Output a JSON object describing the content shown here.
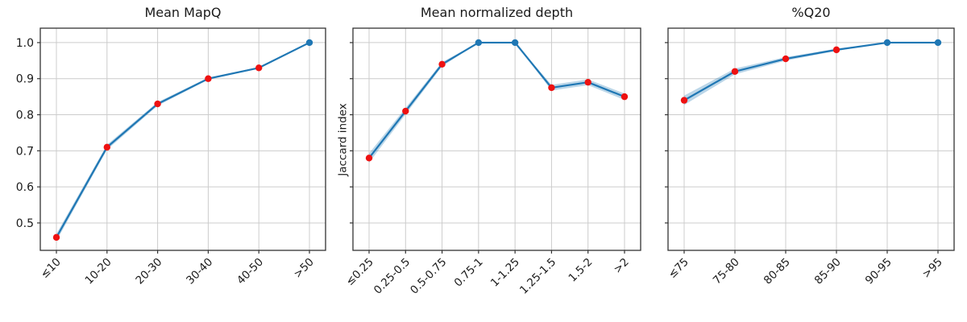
{
  "figure": {
    "background": "#ffffff",
    "grid": true,
    "legend": null
  },
  "colors": {
    "line": "#1f77b4",
    "band": "#1f77b4",
    "band_opacity": 0.3,
    "marker_red": "#ee1111",
    "marker_blue": "#1f77b4",
    "grid": "#cccccc",
    "spine": "#333333",
    "text": "#1a1a1a"
  },
  "y_axis": {
    "ticks": [
      0.5,
      0.6,
      0.7,
      0.8,
      0.9,
      1.0
    ],
    "tick_labels": [
      "0.5",
      "0.6",
      "0.7",
      "0.8",
      "0.9",
      "1.0"
    ],
    "ylim": [
      0.424,
      1.04
    ]
  },
  "chart_data": [
    {
      "type": "line",
      "title": "Mean MapQ",
      "xlabel": "",
      "ylabel": "",
      "categories": [
        "≤10",
        "10-20",
        "20-30",
        "30-40",
        "40-50",
        ">50"
      ],
      "values": [
        0.46,
        0.71,
        0.83,
        0.9,
        0.93,
        1.0
      ],
      "band_halfwidth": [
        0.01,
        0.007,
        0.005,
        0.003,
        0.002,
        0.0
      ],
      "point_colors": [
        "red",
        "red",
        "red",
        "red",
        "red",
        "blue"
      ],
      "show_y_tick_labels": true,
      "grid": true,
      "ylim": [
        0.424,
        1.04
      ]
    },
    {
      "type": "line",
      "title": "Mean normalized depth",
      "xlabel": "",
      "ylabel": "Jaccard index",
      "categories": [
        "≤0.25",
        "0.25-0.5",
        "0.5-0.75",
        "0.75-1",
        "1-1.25",
        "1.25-1.5",
        "1.5-2",
        ">2"
      ],
      "values": [
        0.68,
        0.81,
        0.94,
        1.0,
        1.0,
        0.875,
        0.89,
        0.85
      ],
      "band_halfwidth": [
        0.013,
        0.009,
        0.006,
        0.0,
        0.0,
        0.008,
        0.008,
        0.009
      ],
      "point_colors": [
        "red",
        "red",
        "red",
        "blue",
        "blue",
        "red",
        "red",
        "red"
      ],
      "show_y_tick_labels": false,
      "grid": true,
      "ylim": [
        0.424,
        1.04
      ]
    },
    {
      "type": "line",
      "title": "%Q20",
      "xlabel": "",
      "ylabel": "",
      "categories": [
        "≤75",
        "75-80",
        "80-85",
        "85-90",
        "90-95",
        ">95"
      ],
      "values": [
        0.84,
        0.92,
        0.955,
        0.98,
        1.0,
        1.0
      ],
      "band_halfwidth": [
        0.013,
        0.008,
        0.005,
        0.003,
        0.0,
        0.0
      ],
      "point_colors": [
        "red",
        "red",
        "red",
        "red",
        "blue",
        "blue"
      ],
      "show_y_tick_labels": false,
      "grid": true,
      "ylim": [
        0.424,
        1.04
      ]
    }
  ]
}
